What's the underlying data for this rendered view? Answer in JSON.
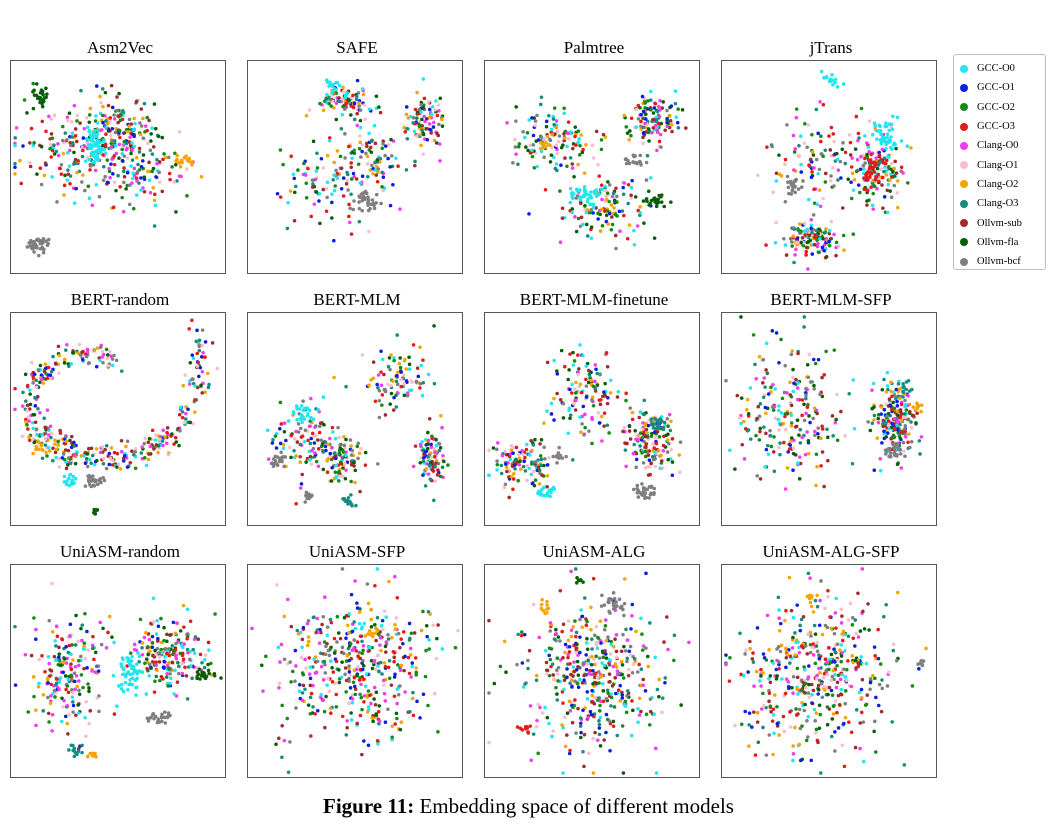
{
  "figure": {
    "caption_label": "Figure 11:",
    "caption_text": " Embedding space of different models"
  },
  "legend": [
    {
      "label": "GCC-O0",
      "color": "#22e5f2"
    },
    {
      "label": "GCC-O1",
      "color": "#0a1ee0"
    },
    {
      "label": "GCC-O2",
      "color": "#168a16"
    },
    {
      "label": "GCC-O3",
      "color": "#e51b1b"
    },
    {
      "label": "Clang-O0",
      "color": "#f23cf2"
    },
    {
      "label": "Clang-O1",
      "color": "#f7bfcb"
    },
    {
      "label": "Clang-O2",
      "color": "#f7a300"
    },
    {
      "label": "Clang-O3",
      "color": "#168c80"
    },
    {
      "label": "Ollvm-sub",
      "color": "#a12a2a"
    },
    {
      "label": "Ollvm-fla",
      "color": "#065e06"
    },
    {
      "label": "Ollvm-bcf",
      "color": "#7f7f7f"
    }
  ],
  "panels": [
    {
      "title": "Asm2Vec"
    },
    {
      "title": "SAFE"
    },
    {
      "title": "Palmtree"
    },
    {
      "title": "jTrans"
    },
    {
      "title": "BERT-random"
    },
    {
      "title": "BERT-MLM"
    },
    {
      "title": "BERT-MLM-finetune"
    },
    {
      "title": "BERT-MLM-SFP"
    },
    {
      "title": "UniASM-random"
    },
    {
      "title": "UniASM-SFP"
    },
    {
      "title": "UniASM-ALG"
    },
    {
      "title": "UniASM-ALG-SFP"
    }
  ]
}
